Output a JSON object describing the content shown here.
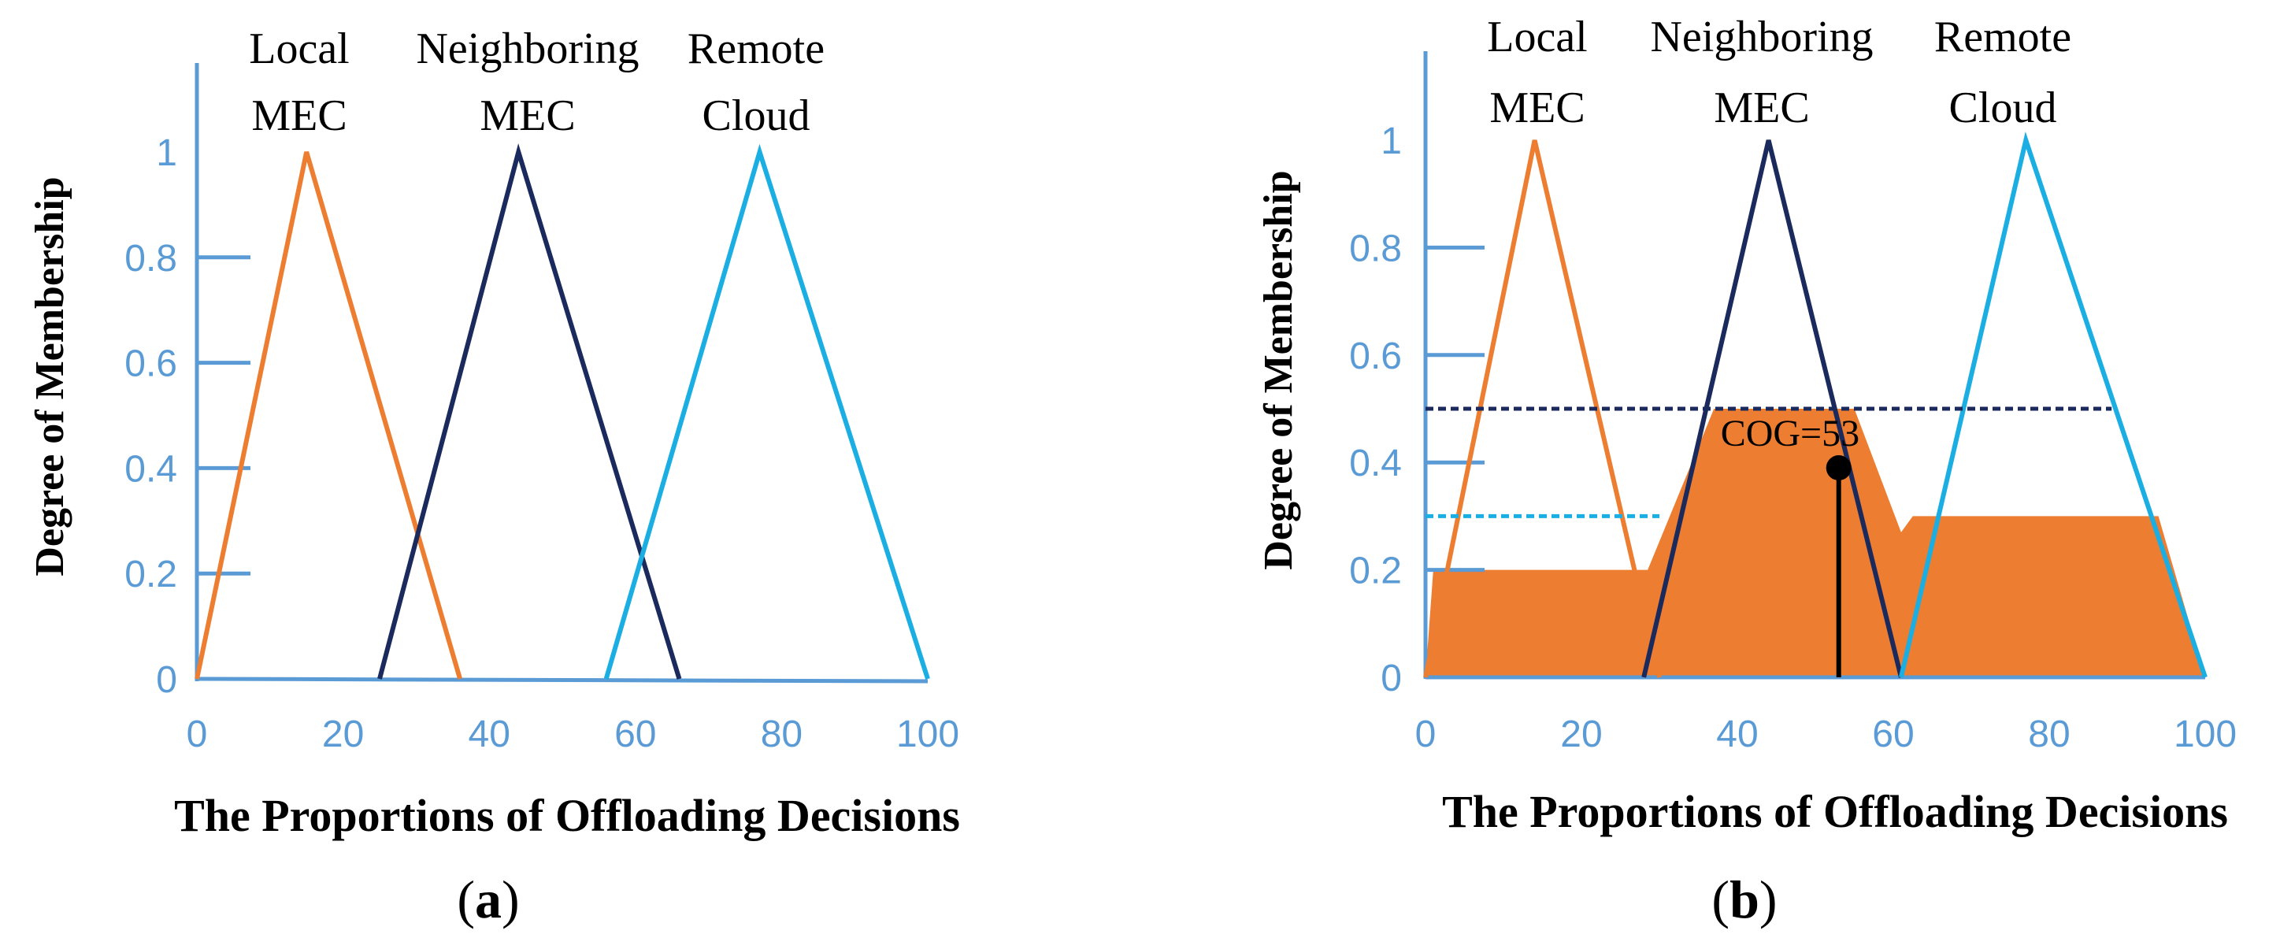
{
  "colors": {
    "local": "#ED7D31",
    "neighboring": "#1B2A5C",
    "remote": "#1AAEE3",
    "axis": "#5B9BD5",
    "fill": "#ED7D31"
  },
  "chart_data": [
    {
      "type": "line",
      "panel": "a",
      "caption": {
        "open": "(",
        "letter": "a",
        "close": ")"
      },
      "xlabel": "The Proportions of Offloading Decisions",
      "ylabel": "Degree of Membership",
      "xlim": [
        0,
        100
      ],
      "ylim": [
        0,
        1
      ],
      "xticks": [
        "0",
        "20",
        "40",
        "60",
        "80",
        "100"
      ],
      "yticks": [
        "0",
        "0.2",
        "0.4",
        "0.6",
        "0.8",
        "1"
      ],
      "categories": [
        {
          "lines": [
            "Local",
            "MEC"
          ]
        },
        {
          "lines": [
            "Neighboring",
            "MEC"
          ]
        },
        {
          "lines": [
            "Remote",
            "Cloud"
          ]
        }
      ],
      "series": [
        {
          "x": [
            0,
            15,
            36
          ],
          "y": [
            0,
            1,
            0
          ]
        },
        {
          "x": [
            25,
            44,
            66
          ],
          "y": [
            0,
            1,
            0
          ]
        },
        {
          "x": [
            56,
            77,
            100
          ],
          "y": [
            0,
            1,
            0
          ]
        }
      ]
    },
    {
      "type": "area",
      "panel": "b",
      "caption": {
        "open": "(",
        "letter": "b",
        "close": ")"
      },
      "xlabel": "The Proportions of Offloading Decisions",
      "ylabel": "Degree of Membership",
      "xlim": [
        0,
        100
      ],
      "ylim": [
        0,
        1
      ],
      "xticks": [
        "0",
        "20",
        "40",
        "60",
        "80",
        "100"
      ],
      "yticks": [
        "0",
        "0.2",
        "0.4",
        "0.6",
        "0.8",
        "1"
      ],
      "categories": [
        {
          "lines": [
            "Local",
            "MEC"
          ]
        },
        {
          "lines": [
            "Neighboring",
            "MEC"
          ]
        },
        {
          "lines": [
            "Remote",
            "Cloud"
          ]
        }
      ],
      "series": [
        {
          "x": [
            0,
            14,
            30
          ],
          "y": [
            0,
            1,
            0
          ]
        },
        {
          "x": [
            28,
            44,
            61
          ],
          "y": [
            0,
            1,
            0
          ]
        },
        {
          "x": [
            61,
            77,
            100
          ],
          "y": [
            0,
            1,
            0
          ]
        }
      ],
      "cut_levels": [
        {
          "level": 0.5,
          "x_end": 88
        },
        {
          "level": 0.3,
          "x_end": 30
        }
      ],
      "aggregated_area": {
        "x": [
          0,
          1,
          28.5,
          37,
          55,
          61,
          62.5,
          94,
          100
        ],
        "y": [
          0,
          0.2,
          0.2,
          0.5,
          0.5,
          0.27,
          0.3,
          0.3,
          0
        ]
      },
      "cog": {
        "label": "COG=53",
        "x": 53,
        "y": 0.39
      }
    }
  ]
}
